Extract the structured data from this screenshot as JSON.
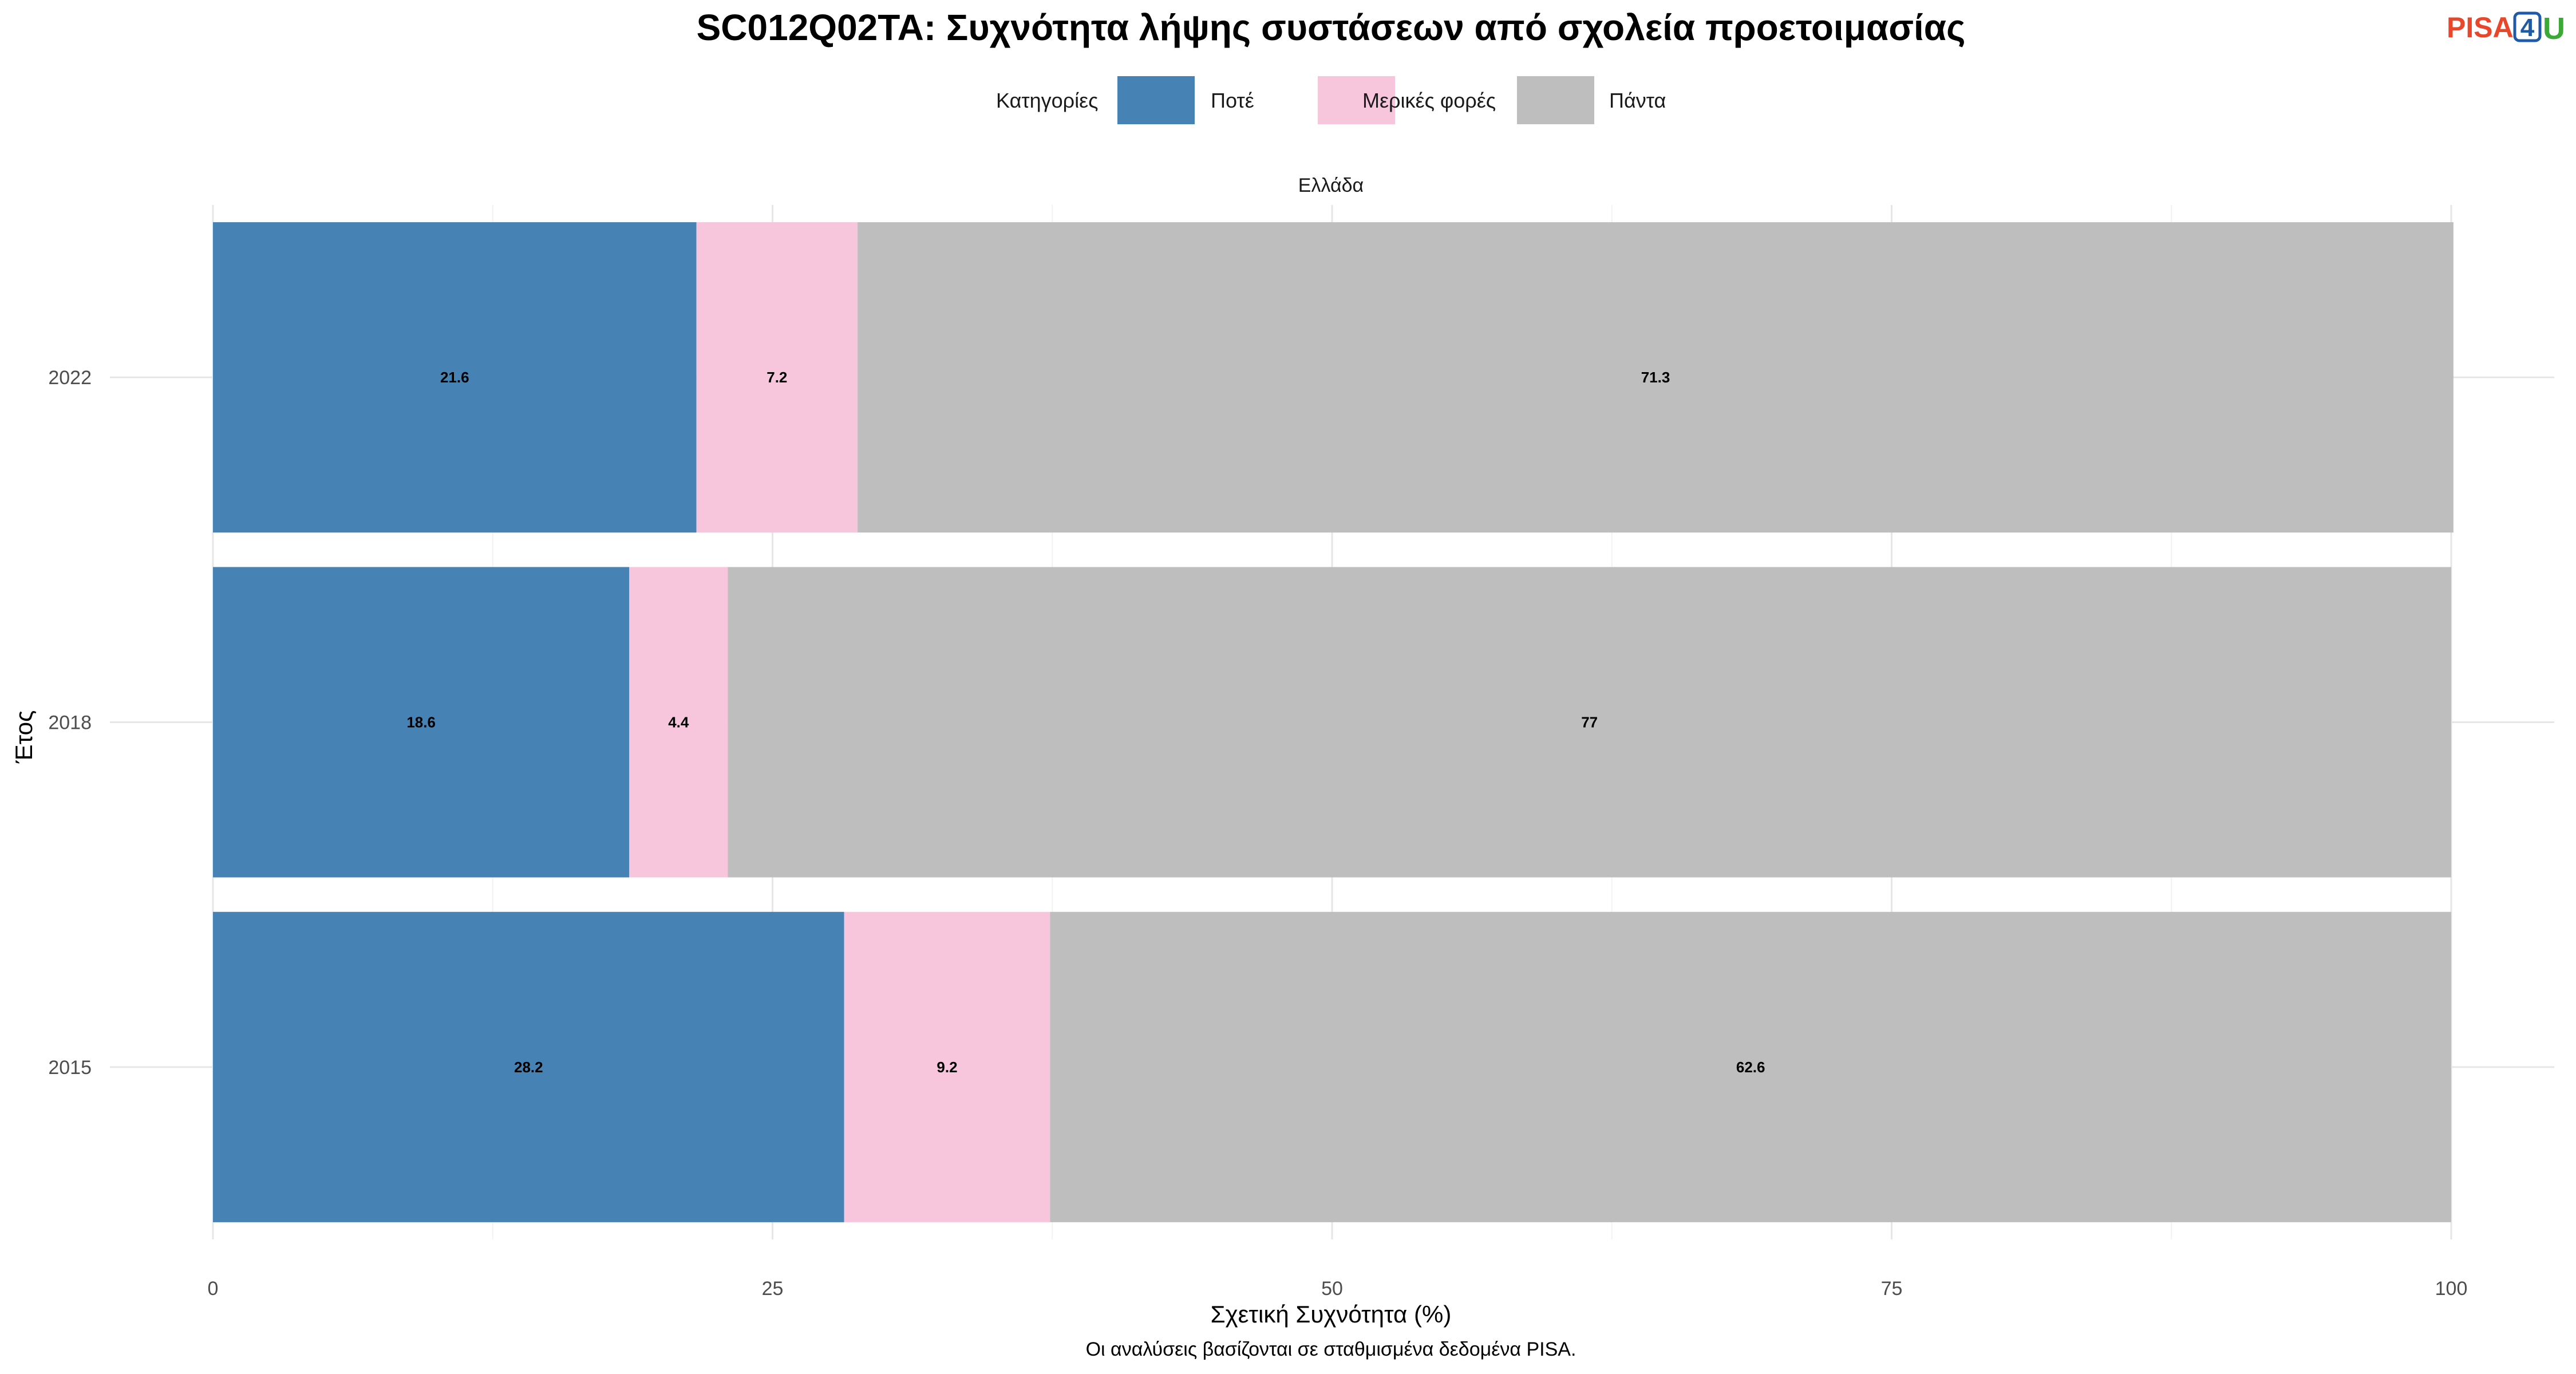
{
  "chart_data": {
    "type": "bar",
    "orientation": "horizontal",
    "stacked": true,
    "title": "SC012Q02TA: Συχνότητα λήψης συστάσεων από σχολεία προετοιμασίας",
    "facet": "Ελλάδα",
    "xlabel": "Σχετική Συχνότητα (%)",
    "ylabel": "Έτος",
    "xlim": [
      0,
      100
    ],
    "x_ticks": [
      "0",
      "25",
      "50",
      "75",
      "100"
    ],
    "categories": [
      "2022",
      "2018",
      "2015"
    ],
    "legend": {
      "title": "Κατηγορίες",
      "position": "top"
    },
    "series": [
      {
        "name": "Ποτέ",
        "color": "#4682b4",
        "values": [
          21.6,
          18.6,
          28.2
        ],
        "labels": [
          "21.6",
          "18.6",
          "28.2"
        ]
      },
      {
        "name": "Μερικές φορές",
        "color": "#f7c6dd",
        "values": [
          7.2,
          4.4,
          9.2
        ],
        "labels": [
          "7.2",
          "4.4",
          "9.2"
        ]
      },
      {
        "name": "Πάντα",
        "color": "#bebebe",
        "values": [
          71.3,
          77,
          62.6
        ],
        "labels": [
          "71.3",
          "77",
          "62.6"
        ]
      }
    ],
    "grid": true,
    "caption": "Οι αναλύσεις βασίζονται σε σταθμισμένα δεδομένα PISA."
  },
  "logo": {
    "part1": "PISA",
    "part2": "4",
    "part3": "U"
  }
}
